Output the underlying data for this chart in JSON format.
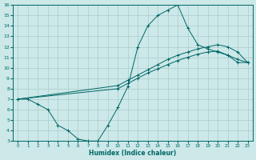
{
  "xlabel": "Humidex (Indice chaleur)",
  "ylabel": "",
  "xlim": [
    -0.5,
    23.5
  ],
  "ylim": [
    3,
    16
  ],
  "xticks": [
    0,
    1,
    2,
    3,
    4,
    5,
    6,
    7,
    8,
    9,
    10,
    11,
    12,
    13,
    14,
    15,
    16,
    17,
    18,
    19,
    20,
    21,
    22,
    23
  ],
  "yticks": [
    3,
    4,
    5,
    6,
    7,
    8,
    9,
    10,
    11,
    12,
    13,
    14,
    15,
    16
  ],
  "bg_color": "#cce8e8",
  "grid_color": "#aacccc",
  "line_color": "#006666",
  "line1_x": [
    0,
    1,
    2,
    3,
    4,
    5,
    6,
    7,
    8,
    9,
    10,
    11,
    12,
    13,
    14,
    15,
    16,
    17,
    18,
    19,
    20,
    21,
    22,
    23
  ],
  "line1_y": [
    7.0,
    7.0,
    6.5,
    6.0,
    4.5,
    4.0,
    3.2,
    3.0,
    3.0,
    4.5,
    6.2,
    8.2,
    12.0,
    14.0,
    15.0,
    15.5,
    16.0,
    13.8,
    12.2,
    11.8,
    11.5,
    11.2,
    10.5,
    10.5
  ],
  "line2_x": [
    0,
    10,
    11,
    12,
    13,
    14,
    15,
    16,
    17,
    18,
    19,
    20,
    21,
    22,
    23
  ],
  "line2_y": [
    7.0,
    8.3,
    8.8,
    9.3,
    9.8,
    10.3,
    10.8,
    11.2,
    11.5,
    11.8,
    12.0,
    12.2,
    12.0,
    11.5,
    10.5
  ],
  "line3_x": [
    0,
    10,
    11,
    12,
    13,
    14,
    15,
    16,
    17,
    18,
    19,
    20,
    21,
    22,
    23
  ],
  "line3_y": [
    7.0,
    8.0,
    8.5,
    9.0,
    9.5,
    9.9,
    10.3,
    10.7,
    11.0,
    11.3,
    11.5,
    11.6,
    11.2,
    10.8,
    10.5
  ]
}
